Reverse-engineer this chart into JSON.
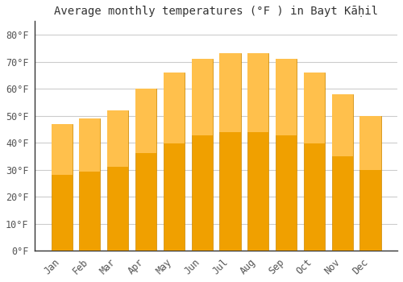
{
  "title": "Average monthly temperatures (°F ) in Bayt Kāḥil",
  "months": [
    "Jan",
    "Feb",
    "Mar",
    "Apr",
    "May",
    "Jun",
    "Jul",
    "Aug",
    "Sep",
    "Oct",
    "Nov",
    "Dec"
  ],
  "values": [
    47,
    49,
    52,
    60,
    66,
    71,
    73,
    73,
    71,
    66,
    58,
    50
  ],
  "bar_color_top": "#FFC04C",
  "bar_color_bottom": "#F0A000",
  "bar_edge_color": "#CC8800",
  "ylim": [
    0,
    85
  ],
  "yticks": [
    0,
    10,
    20,
    30,
    40,
    50,
    60,
    70,
    80
  ],
  "bg_color": "#FFFFFF",
  "grid_color": "#CCCCCC",
  "title_fontsize": 10,
  "tick_fontsize": 8.5
}
